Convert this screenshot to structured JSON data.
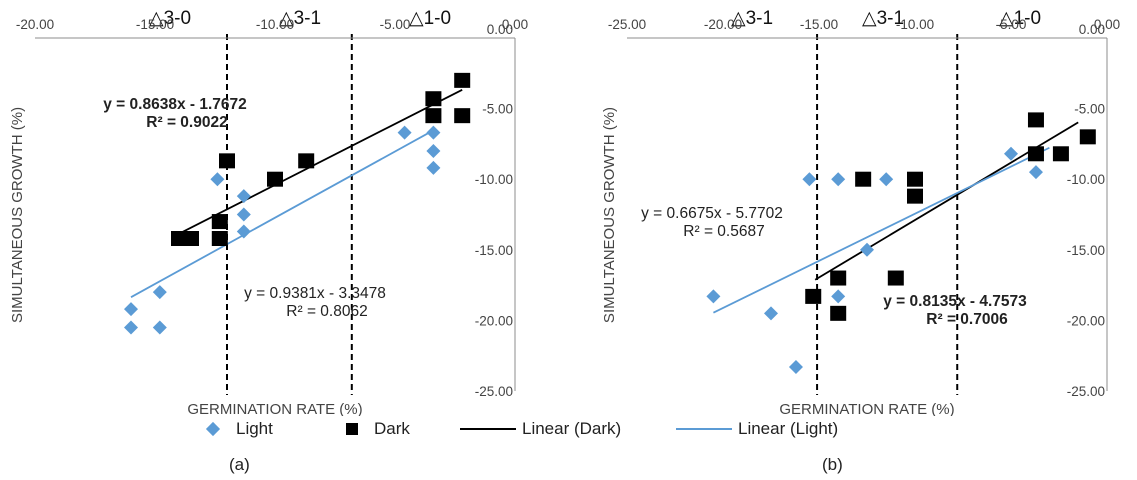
{
  "chart_data": [
    {
      "panel": "(a)",
      "type": "scatter",
      "xlabel": "GERMINATION RATE (%)",
      "ylabel": "SIMULTANEOUS GROWTH (%)",
      "xlim": [
        -20,
        0
      ],
      "ylim": [
        -25,
        0
      ],
      "xticks": [
        "-20.00",
        "-15.00",
        "-10.00",
        "-5.00",
        "0.00"
      ],
      "yticks": [
        "0.00",
        "-5.00",
        "-10.00",
        "-15.00",
        "-20.00",
        "-25.00"
      ],
      "grid": false,
      "zones": [
        "△3-0",
        "△3-1",
        "△1-0"
      ],
      "boundaries": [
        -12,
        -6.8
      ],
      "series": [
        {
          "name": "Light",
          "marker": "diamond",
          "color": "#5b9bd5",
          "points": [
            [
              -16,
              -19.2
            ],
            [
              -16,
              -20.5
            ],
            [
              -14.8,
              -18
            ],
            [
              -14.8,
              -20.5
            ],
            [
              -12.4,
              -10
            ],
            [
              -11.3,
              -11.2
            ],
            [
              -11.3,
              -12.5
            ],
            [
              -11.3,
              -13.7
            ],
            [
              -4.6,
              -6.7
            ],
            [
              -3.4,
              -6.7
            ],
            [
              -3.4,
              -8
            ],
            [
              -3.4,
              -9.2
            ]
          ]
        },
        {
          "name": "Dark",
          "marker": "square",
          "color": "#000000",
          "points": [
            [
              -14,
              -14.2
            ],
            [
              -13.5,
              -14.2
            ],
            [
              -12.3,
              -13
            ],
            [
              -12.3,
              -14.2
            ],
            [
              -12,
              -8.7
            ],
            [
              -10,
              -10
            ],
            [
              -8.7,
              -8.7
            ],
            [
              -3.4,
              -4.3
            ],
            [
              -3.4,
              -5.5
            ],
            [
              -2.2,
              -3
            ],
            [
              -2.2,
              -5.5
            ]
          ]
        }
      ],
      "trendlines": [
        {
          "name": "Linear (Dark)",
          "slope": 0.8638,
          "intercept": -1.7672,
          "color": "#000000",
          "x_range": [
            -14.2,
            -2.2
          ]
        },
        {
          "name": "Linear (Light)",
          "slope": 0.9381,
          "intercept": -3.3478,
          "color": "#5b9bd5",
          "x_range": [
            -16,
            -3.4
          ]
        }
      ],
      "annotations": [
        {
          "line1": "y = 0.8638x - 1.7672",
          "line2": "R² = 0.9022",
          "bold": true
        },
        {
          "line1": "y = 0.9381x - 3.3478",
          "line2": "R² = 0.8062",
          "bold": false
        }
      ]
    },
    {
      "panel": "(b)",
      "type": "scatter",
      "xlabel": "GERMINATION RATE (%)",
      "ylabel": "SIMULTANEOUS GROWTH (%)",
      "xlim": [
        -25,
        0
      ],
      "ylim": [
        -25,
        0
      ],
      "xticks": [
        "-25.00",
        "-20.00",
        "-15.00",
        "-10.00",
        "-5.00",
        "0.00"
      ],
      "yticks": [
        "0.00",
        "-5.00",
        "-10.00",
        "-15.00",
        "-20.00",
        "-25.00"
      ],
      "grid": false,
      "zones": [
        "△3-1",
        "△3-1",
        "△1-0"
      ],
      "boundaries": [
        -15.1,
        -7.8
      ],
      "series": [
        {
          "name": "Light",
          "marker": "diamond",
          "color": "#5b9bd5",
          "points": [
            [
              -20.5,
              -18.3
            ],
            [
              -17.5,
              -19.5
            ],
            [
              -16.2,
              -23.3
            ],
            [
              -15.5,
              -10
            ],
            [
              -14,
              -10
            ],
            [
              -14,
              -18.3
            ],
            [
              -12.5,
              -15
            ],
            [
              -11.5,
              -10
            ],
            [
              -5,
              -8.2
            ],
            [
              -3.7,
              -9.5
            ]
          ]
        },
        {
          "name": "Dark",
          "marker": "square",
          "color": "#000000",
          "points": [
            [
              -15.3,
              -18.3
            ],
            [
              -14,
              -17
            ],
            [
              -14,
              -19.5
            ],
            [
              -12.7,
              -10
            ],
            [
              -11,
              -17
            ],
            [
              -10,
              -10
            ],
            [
              -10,
              -11.2
            ],
            [
              -3.7,
              -5.8
            ],
            [
              -3.7,
              -8.2
            ],
            [
              -2.4,
              -8.2
            ],
            [
              -1,
              -7
            ]
          ]
        }
      ],
      "trendlines": [
        {
          "name": "Linear (Dark)",
          "slope": 0.8135,
          "intercept": -4.7573,
          "color": "#000000",
          "x_range": [
            -15.2,
            -1.5
          ]
        },
        {
          "name": "Linear (Light)",
          "slope": 0.6675,
          "intercept": -5.7702,
          "color": "#5b9bd5",
          "x_range": [
            -20.5,
            -3
          ]
        }
      ],
      "annotations": [
        {
          "line1": "y = 0.6675x - 5.7702",
          "line2": "R² = 0.5687",
          "bold": false
        },
        {
          "line1": "y = 0.8135x - 4.7573",
          "line2": "R² = 0.7006",
          "bold": true
        }
      ]
    }
  ],
  "legend": {
    "light": "Light",
    "dark": "Dark",
    "linear_dark": "Linear (Dark)",
    "linear_light": "Linear (Light)"
  },
  "panel_labels": [
    "(a)",
    "(b)"
  ]
}
